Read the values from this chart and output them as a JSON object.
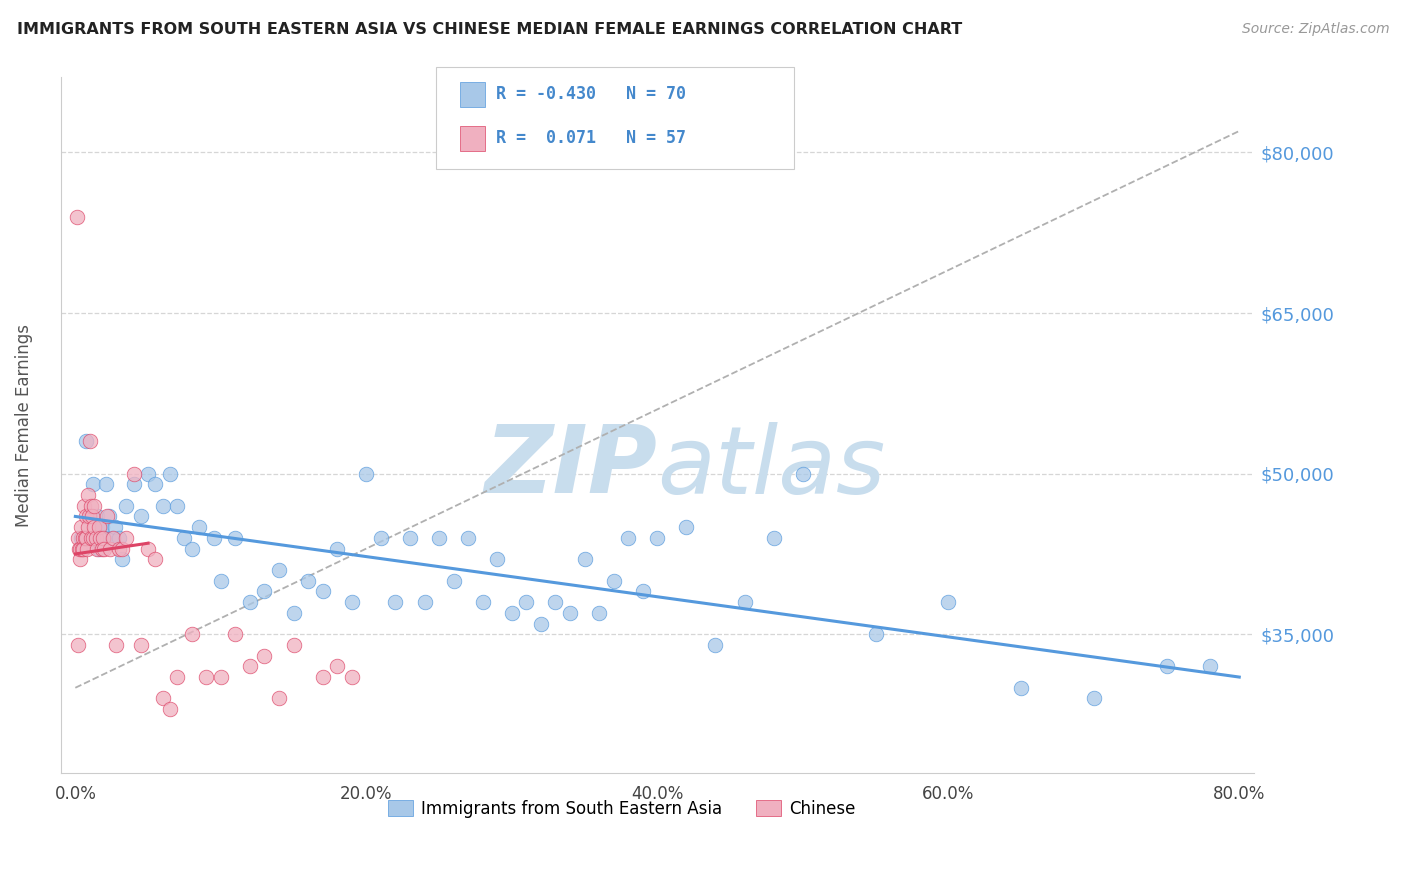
{
  "title": "IMMIGRANTS FROM SOUTH EASTERN ASIA VS CHINESE MEDIAN FEMALE EARNINGS CORRELATION CHART",
  "source": "Source: ZipAtlas.com",
  "xlabel_ticks": [
    "0.0%",
    "20.0%",
    "40.0%",
    "60.0%",
    "80.0%"
  ],
  "xlabel_tick_vals": [
    0.0,
    20.0,
    40.0,
    60.0,
    80.0
  ],
  "ylabel_ticks": [
    "$35,000",
    "$50,000",
    "$65,000",
    "$80,000"
  ],
  "ylabel_tick_vals": [
    35000,
    50000,
    65000,
    80000
  ],
  "ylim": [
    22000,
    87000
  ],
  "xlim": [
    -1,
    81
  ],
  "color_blue": "#a8c8e8",
  "color_pink": "#f0b0c0",
  "color_trendline_blue": "#5599dd",
  "color_trendline_pink": "#dd4466",
  "color_legend_text": "#4488cc",
  "color_title": "#222222",
  "color_source": "#999999",
  "watermark_color": "#ccdded",
  "diag_x0": 0,
  "diag_y0": 30000,
  "diag_x1": 80,
  "diag_y1": 82000,
  "blue_trendline_x0": 0,
  "blue_trendline_y0": 46000,
  "blue_trendline_x1": 80,
  "blue_trendline_y1": 31000,
  "pink_trendline_x0": 0,
  "pink_trendline_y0": 42500,
  "pink_trendline_x1": 5,
  "pink_trendline_y1": 43500,
  "blue_x": [
    0.4,
    0.7,
    1.0,
    1.2,
    1.3,
    1.5,
    1.6,
    1.7,
    1.8,
    2.0,
    2.1,
    2.3,
    2.5,
    2.7,
    3.0,
    3.2,
    3.5,
    4.0,
    4.5,
    5.0,
    5.5,
    6.0,
    6.5,
    7.0,
    7.5,
    8.0,
    8.5,
    9.5,
    10.0,
    11.0,
    12.0,
    13.0,
    14.0,
    15.0,
    16.0,
    17.0,
    18.0,
    19.0,
    20.0,
    21.0,
    22.0,
    23.0,
    24.0,
    25.0,
    26.0,
    27.0,
    28.0,
    29.0,
    30.0,
    31.0,
    32.0,
    33.0,
    34.0,
    35.0,
    36.0,
    37.0,
    38.0,
    39.0,
    40.0,
    42.0,
    44.0,
    46.0,
    48.0,
    50.0,
    55.0,
    60.0,
    65.0,
    70.0,
    75.0,
    78.0
  ],
  "blue_y": [
    44000,
    53000,
    46000,
    49000,
    44000,
    46000,
    43000,
    45000,
    45000,
    44000,
    49000,
    46000,
    44000,
    45000,
    44000,
    42000,
    47000,
    49000,
    46000,
    50000,
    49000,
    47000,
    50000,
    47000,
    44000,
    43000,
    45000,
    44000,
    40000,
    44000,
    38000,
    39000,
    41000,
    37000,
    40000,
    39000,
    43000,
    38000,
    50000,
    44000,
    38000,
    44000,
    38000,
    44000,
    40000,
    44000,
    38000,
    42000,
    37000,
    38000,
    36000,
    38000,
    37000,
    42000,
    37000,
    40000,
    44000,
    39000,
    44000,
    45000,
    34000,
    38000,
    44000,
    50000,
    35000,
    38000,
    30000,
    29000,
    32000,
    32000
  ],
  "pink_x": [
    0.1,
    0.15,
    0.2,
    0.25,
    0.3,
    0.35,
    0.4,
    0.45,
    0.5,
    0.55,
    0.6,
    0.65,
    0.7,
    0.75,
    0.8,
    0.85,
    0.9,
    0.95,
    1.0,
    1.05,
    1.1,
    1.15,
    1.2,
    1.25,
    1.3,
    1.4,
    1.5,
    1.6,
    1.7,
    1.8,
    1.9,
    2.0,
    2.2,
    2.4,
    2.6,
    2.8,
    3.0,
    3.2,
    3.5,
    4.0,
    4.5,
    5.0,
    5.5,
    6.0,
    6.5,
    7.0,
    8.0,
    9.0,
    10.0,
    11.0,
    12.0,
    13.0,
    14.0,
    15.0,
    17.0,
    18.0,
    19.0
  ],
  "pink_y": [
    74000,
    44000,
    34000,
    43000,
    42000,
    43000,
    45000,
    43000,
    44000,
    43000,
    47000,
    44000,
    46000,
    44000,
    43000,
    48000,
    45000,
    46000,
    53000,
    47000,
    44000,
    46000,
    44000,
    45000,
    47000,
    44000,
    43000,
    45000,
    44000,
    43000,
    44000,
    43000,
    46000,
    43000,
    44000,
    34000,
    43000,
    43000,
    44000,
    50000,
    34000,
    43000,
    42000,
    29000,
    28000,
    31000,
    35000,
    31000,
    31000,
    35000,
    32000,
    33000,
    29000,
    34000,
    31000,
    32000,
    31000
  ]
}
